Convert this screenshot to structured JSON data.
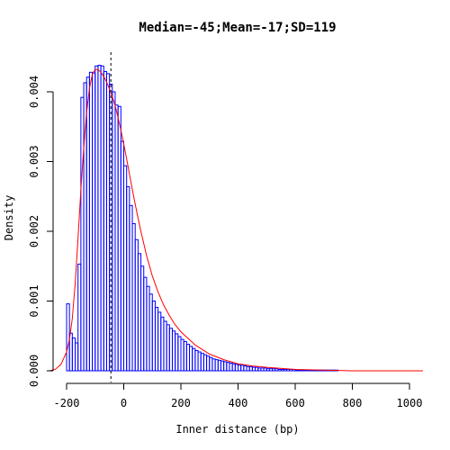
{
  "chart_data": {
    "type": "bar",
    "title": "Median=-45;Mean=-17;SD=119",
    "xlabel": "Inner distance (bp)",
    "ylabel": "Density",
    "xlim": [
      -250,
      1050
    ],
    "ylim": [
      0,
      0.0045
    ],
    "x_ticks": [
      -200,
      0,
      200,
      400,
      600,
      800,
      1000
    ],
    "x_tick_labels": [
      "-200",
      "0",
      "200",
      "400",
      "600",
      "800",
      "1000"
    ],
    "y_ticks": [
      0.0,
      0.001,
      0.002,
      0.003,
      0.004
    ],
    "y_tick_labels": [
      "0.000",
      "0.001",
      "0.002",
      "0.003",
      "0.004"
    ],
    "median_line_x": -45,
    "bin_start": -200,
    "bin_width": 10,
    "values": [
      0.00096,
      0.00054,
      0.00047,
      0.0004,
      0.00153,
      0.00392,
      0.00413,
      0.00421,
      0.00428,
      0.00427,
      0.00437,
      0.00438,
      0.00437,
      0.00429,
      0.00426,
      0.00411,
      0.004,
      0.00381,
      0.00379,
      0.00329,
      0.00294,
      0.00264,
      0.00237,
      0.00211,
      0.00188,
      0.00168,
      0.0015,
      0.00134,
      0.00121,
      0.0011,
      0.001,
      0.00091,
      0.00084,
      0.00077,
      0.00071,
      0.00066,
      0.00061,
      0.00057,
      0.00053,
      0.00049,
      0.00045,
      0.00042,
      0.00038,
      0.00035,
      0.00032,
      0.00029,
      0.00027,
      0.00025,
      0.00023,
      0.00021,
      0.00019,
      0.00017,
      0.00016,
      0.00015,
      0.00014,
      0.00013,
      0.00012,
      0.00011,
      0.0001,
      9e-05,
      8e-05,
      8e-05,
      7e-05,
      6e-05,
      6e-05,
      5e-05,
      5e-05,
      4e-05,
      4e-05,
      4e-05,
      3e-05,
      3e-05,
      3e-05,
      3e-05,
      2e-05,
      2e-05,
      2e-05,
      2e-05,
      2e-05,
      2e-05,
      1e-05,
      1e-05,
      1e-05,
      1e-05,
      1e-05,
      1e-05,
      1e-05,
      1e-05,
      1e-05,
      1e-05,
      1e-05,
      1e-05,
      1e-05,
      1e-05,
      1e-05,
      0.0,
      0.0,
      0.0,
      0.0,
      0.0,
      0.0,
      0.0,
      0.0,
      0.0,
      0.0,
      0.0,
      0.0,
      0.0,
      0.0,
      0.0,
      0.0,
      0.0,
      0.0,
      0.0,
      0.0,
      0.0,
      0.0,
      0.0,
      0.0,
      0.0
    ],
    "fit_curve": {
      "x": [
        -260,
        -240,
        -220,
        -200,
        -190,
        -180,
        -170,
        -160,
        -150,
        -140,
        -130,
        -120,
        -110,
        -100,
        -90,
        -80,
        -70,
        -60,
        -50,
        -40,
        -30,
        -20,
        -10,
        0,
        10,
        20,
        30,
        40,
        50,
        60,
        80,
        100,
        120,
        140,
        160,
        180,
        200,
        250,
        300,
        350,
        400,
        450,
        500,
        600,
        700,
        800,
        900,
        1000,
        1050
      ],
      "y": [
        0.0,
        2e-05,
        9e-05,
        0.00027,
        0.00045,
        0.00075,
        0.00125,
        0.0019,
        0.0026,
        0.0032,
        0.0037,
        0.00405,
        0.00425,
        0.00432,
        0.00432,
        0.00428,
        0.00422,
        0.00414,
        0.00404,
        0.00393,
        0.0038,
        0.00363,
        0.00345,
        0.00325,
        0.00304,
        0.00282,
        0.0026,
        0.00239,
        0.00219,
        0.002,
        0.00165,
        0.00136,
        0.00113,
        0.00094,
        0.00079,
        0.00066,
        0.00056,
        0.00037,
        0.00024,
        0.00016,
        0.0001,
        7e-05,
        5e-05,
        2e-05,
        1e-05,
        0.0,
        0.0,
        0.0,
        0.0
      ]
    },
    "colors": {
      "bar": "#0000ff",
      "curve": "#ff0000",
      "median_line": "#000000"
    },
    "grid": false,
    "legend": "none"
  }
}
